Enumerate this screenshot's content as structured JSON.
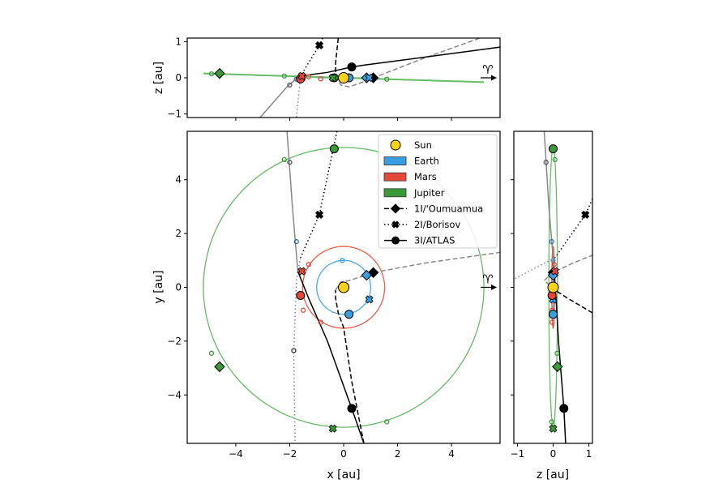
{
  "chart_data": {
    "type": "scatter",
    "title": "",
    "panels": {
      "main": {
        "xlabel": "x [au]",
        "ylabel": "y [au]",
        "xlim": [
          -5.8,
          5.8
        ],
        "ylim": [
          -5.8,
          5.8
        ],
        "xticks": [
          -4,
          -2,
          0,
          2,
          4
        ],
        "yticks": [
          -4,
          -2,
          0,
          2,
          4
        ]
      },
      "top": {
        "ylabel": "z [au]",
        "xlim": [
          -5.8,
          5.8
        ],
        "ylim": [
          -1.1,
          1.1
        ],
        "yticks": [
          -1,
          0,
          1
        ]
      },
      "side": {
        "xlabel": "z [au]",
        "xlim": [
          -1.1,
          1.1
        ],
        "ylim": [
          -5.8,
          5.8
        ],
        "xticks": [
          -1,
          0,
          1
        ]
      }
    },
    "vernal_equinox_symbol": "♈",
    "colors": {
      "sun": "#ffd21a",
      "earth": "#3a9ee2",
      "mars": "#e5483a",
      "jupiter": "#3a9a3a",
      "jupiter_orbit": "#66bb66",
      "earth_orbit": "#4aa8e8",
      "mars_orbit": "#ec5a4a",
      "object": "#000000",
      "object_after": "#888888"
    },
    "legend": {
      "position": "top-right",
      "entries": [
        {
          "label": "Sun",
          "kind": "circle",
          "color": "#ffd21a"
        },
        {
          "label": "Earth",
          "kind": "patch",
          "color": "#3a9ee2"
        },
        {
          "label": "Mars",
          "kind": "patch",
          "color": "#e5483a"
        },
        {
          "label": "Jupiter",
          "kind": "patch",
          "color": "#3a9a3a"
        },
        {
          "label": "1I/'Oumuamua",
          "kind": "line",
          "dash": "dashed",
          "marker": "diamond"
        },
        {
          "label": "2I/Borisov",
          "kind": "line",
          "dash": "dotted",
          "marker": "x"
        },
        {
          "label": "3I/ATLAS",
          "kind": "line",
          "dash": "solid",
          "marker": "circle"
        }
      ]
    },
    "orbits": [
      {
        "name": "Earth",
        "radius": 1.0,
        "z_amp": 0.0,
        "color": "#4aa8e8"
      },
      {
        "name": "Mars",
        "radius": 1.52,
        "z_amp": 0.04,
        "color": "#ec5a4a"
      },
      {
        "name": "Jupiter",
        "radius": 5.2,
        "z_amp": 0.12,
        "color": "#66bb66"
      }
    ],
    "trajectories": [
      {
        "name": "1I/'Oumuamua",
        "dash": "dashed",
        "marker": "diamond",
        "points": [
          [
            0.75,
            -5.8,
            8
          ],
          [
            0.3,
            -3.5,
            5
          ],
          [
            0.0,
            -1.5,
            2
          ],
          [
            -0.2,
            -0.95,
            1.1
          ],
          [
            -0.3,
            -0.4,
            0.4
          ],
          [
            -0.3,
            -0.1,
            0.05
          ],
          [
            -0.1,
            0.2,
            -0.2
          ],
          [
            0.2,
            0.25,
            -0.25
          ],
          [
            0.6,
            0.38,
            -0.15
          ],
          [
            1.1,
            0.55,
            0.0
          ],
          [
            3.0,
            0.9,
            0.55
          ],
          [
            5.8,
            1.3,
            1.3
          ]
        ],
        "after_index": 5,
        "marker_at": [
          1.1,
          0.55,
          0.0
        ]
      },
      {
        "name": "2I/Borisov",
        "dash": "dotted",
        "marker": "x",
        "points": [
          [
            -0.1,
            6.5,
            2.2
          ],
          [
            -0.9,
            2.7,
            0.9
          ],
          [
            -1.6,
            1.1,
            0.05
          ],
          [
            -1.75,
            0.3,
            -1.1
          ],
          [
            -1.85,
            -2.4,
            -4
          ],
          [
            -1.8,
            -5.8,
            -9
          ]
        ],
        "after_index": 2,
        "marker_at": [
          -0.9,
          2.7,
          0.9
        ]
      },
      {
        "name": "3I/ATLAS",
        "dash": "solid",
        "marker": "circle",
        "points": [
          [
            5.8,
            -30,
            0.85
          ],
          [
            0.75,
            -5.8,
            0.35
          ],
          [
            0.3,
            -4.5,
            0.3
          ],
          [
            -0.6,
            -2.0,
            0.15
          ],
          [
            -1.3,
            -0.4,
            0.08
          ],
          [
            -1.7,
            0.6,
            0.03
          ],
          [
            -1.9,
            3.0,
            -0.12
          ],
          [
            -2.1,
            5.8,
            -0.25
          ],
          [
            -3.1,
            20,
            -1.1
          ]
        ],
        "after_index": 5,
        "marker_at": [
          0.3,
          -4.5,
          0.3
        ]
      }
    ],
    "bodies": [
      {
        "name": "Sun",
        "shape": "circle",
        "color": "#ffd21a",
        "pos": [
          0,
          0,
          0
        ],
        "size": "large"
      },
      {
        "name": "Earth (3I epoch)",
        "shape": "circle",
        "color": "#3a9ee2",
        "pos": [
          0.2,
          -1.0,
          0
        ]
      },
      {
        "name": "Earth (1I epoch)",
        "shape": "diamond",
        "color": "#3a9ee2",
        "pos": [
          0.85,
          0.45,
          0
        ]
      },
      {
        "name": "Earth (2I epoch)",
        "shape": "x",
        "color": "#3a9ee2",
        "pos": [
          0.95,
          -0.45,
          0
        ]
      },
      {
        "name": "Mars (3I epoch)",
        "shape": "circle",
        "color": "#e5483a",
        "pos": [
          -1.6,
          -0.3,
          -0.03
        ]
      },
      {
        "name": "Mars (2I epoch)",
        "shape": "x",
        "color": "#e5483a",
        "pos": [
          -1.55,
          0.6,
          0.05
        ]
      },
      {
        "name": "Jupiter (3I epoch)",
        "shape": "circle",
        "color": "#3a9a3a",
        "pos": [
          -0.35,
          5.15,
          0.0
        ]
      },
      {
        "name": "Jupiter (1I epoch)",
        "shape": "diamond",
        "color": "#3a9a3a",
        "pos": [
          -4.6,
          -2.95,
          0.12
        ]
      },
      {
        "name": "Jupiter (2I epoch)",
        "shape": "x",
        "color": "#3a9a3a",
        "pos": [
          -0.4,
          -5.25,
          0.0
        ]
      }
    ],
    "small_markers": [
      {
        "color": "#3a9ee2",
        "pos": [
          -0.05,
          1.0,
          0
        ]
      },
      {
        "color": "#e5483a",
        "pos": [
          -1.3,
          0.85,
          0.03
        ]
      },
      {
        "color": "#e5483a",
        "pos": [
          -1.5,
          -0.85,
          -0.03
        ]
      },
      {
        "color": "#e5483a",
        "pos": [
          -0.85,
          -1.3,
          -0.03
        ]
      },
      {
        "color": "#3a9a3a",
        "pos": [
          -2.2,
          4.75,
          0.05
        ]
      },
      {
        "color": "#3a9a3a",
        "pos": [
          -4.9,
          -2.45,
          0.11
        ]
      },
      {
        "color": "#3a9a3a",
        "pos": [
          1.6,
          -5.0,
          -0.04
        ]
      },
      {
        "color": "#555555",
        "pos": [
          -2.0,
          4.65,
          -0.2
        ]
      },
      {
        "color": "#3a6ea8",
        "pos": [
          -1.75,
          1.7,
          -0.04
        ]
      },
      {
        "color": "#333333",
        "pos": [
          -1.85,
          -2.35,
          -4
        ]
      }
    ]
  }
}
